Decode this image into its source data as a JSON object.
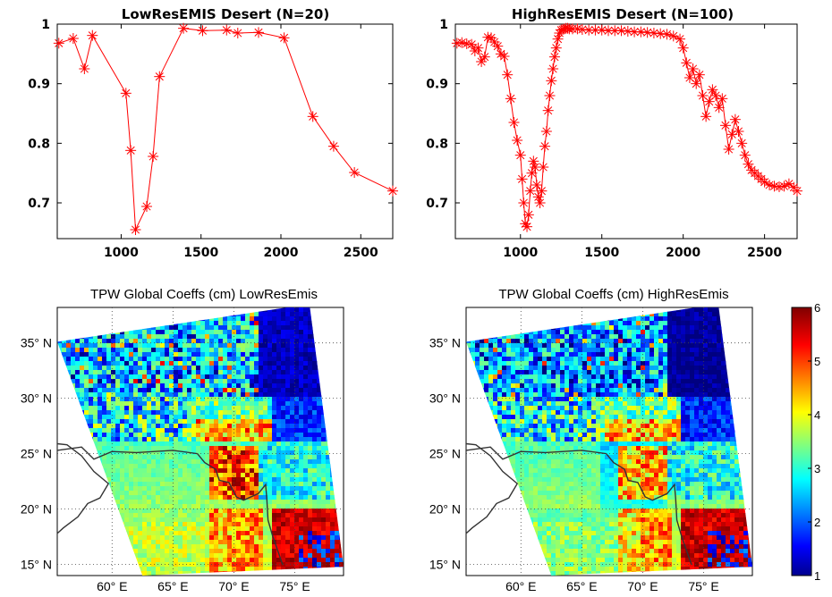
{
  "chart_data": [
    {
      "type": "line",
      "title": "LowResEMIS Desert (N=20)",
      "xlim": [
        600,
        2700
      ],
      "ylim": [
        0.64,
        1.0
      ],
      "x_ticks": [
        "1000",
        "1500",
        "2000",
        "2500"
      ],
      "y_ticks": [
        "0.7",
        "0.8",
        "0.9",
        "1"
      ],
      "marker": "asterisk",
      "color": "#ff0000",
      "x": [
        610,
        700,
        770,
        820,
        1030,
        1060,
        1090,
        1160,
        1200,
        1240,
        1390,
        1510,
        1660,
        1730,
        1860,
        2020,
        2200,
        2330,
        2460,
        2700
      ],
      "y": [
        0.968,
        0.976,
        0.925,
        0.981,
        0.884,
        0.788,
        0.655,
        0.694,
        0.778,
        0.912,
        0.993,
        0.989,
        0.99,
        0.985,
        0.986,
        0.977,
        0.845,
        0.795,
        0.751,
        0.72
      ]
    },
    {
      "type": "line",
      "title": "HighResEMIS Desert (N=100)",
      "xlim": [
        600,
        2700
      ],
      "ylim": [
        0.64,
        1.0
      ],
      "x_ticks": [
        "1000",
        "1500",
        "2000",
        "2500"
      ],
      "y_ticks": [
        "0.7",
        "0.8",
        "0.9",
        "1"
      ],
      "marker": "asterisk",
      "color": "#ff0000",
      "x": [
        610,
        640,
        670,
        700,
        720,
        740,
        760,
        780,
        800,
        820,
        840,
        860,
        880,
        900,
        920,
        940,
        960,
        980,
        1000,
        1010,
        1020,
        1030,
        1040,
        1050,
        1060,
        1070,
        1080,
        1090,
        1100,
        1110,
        1120,
        1130,
        1140,
        1150,
        1160,
        1170,
        1180,
        1190,
        1200,
        1210,
        1220,
        1230,
        1240,
        1250,
        1260,
        1270,
        1280,
        1290,
        1300,
        1320,
        1350,
        1380,
        1420,
        1460,
        1500,
        1540,
        1580,
        1620,
        1660,
        1700,
        1740,
        1780,
        1820,
        1860,
        1900,
        1940,
        1980,
        2000,
        2020,
        2040,
        2060,
        2080,
        2100,
        2120,
        2140,
        2160,
        2180,
        2200,
        2220,
        2240,
        2260,
        2280,
        2300,
        2320,
        2340,
        2360,
        2380,
        2400,
        2420,
        2440,
        2460,
        2480,
        2500,
        2530,
        2560,
        2590,
        2620,
        2650,
        2680,
        2700
      ],
      "y": [
        0.968,
        0.969,
        0.967,
        0.966,
        0.955,
        0.96,
        0.937,
        0.945,
        0.978,
        0.977,
        0.97,
        0.963,
        0.95,
        0.946,
        0.915,
        0.875,
        0.835,
        0.805,
        0.78,
        0.74,
        0.7,
        0.665,
        0.66,
        0.68,
        0.72,
        0.75,
        0.77,
        0.76,
        0.73,
        0.71,
        0.7,
        0.72,
        0.76,
        0.795,
        0.82,
        0.855,
        0.88,
        0.905,
        0.925,
        0.945,
        0.96,
        0.975,
        0.985,
        0.99,
        0.991,
        0.992,
        0.993,
        0.993,
        0.992,
        0.992,
        0.992,
        0.991,
        0.99,
        0.99,
        0.99,
        0.989,
        0.989,
        0.989,
        0.988,
        0.987,
        0.987,
        0.986,
        0.985,
        0.984,
        0.983,
        0.98,
        0.975,
        0.96,
        0.935,
        0.91,
        0.925,
        0.9,
        0.915,
        0.88,
        0.845,
        0.87,
        0.89,
        0.88,
        0.86,
        0.875,
        0.83,
        0.79,
        0.815,
        0.84,
        0.82,
        0.8,
        0.78,
        0.765,
        0.755,
        0.75,
        0.745,
        0.74,
        0.735,
        0.73,
        0.728,
        0.727,
        0.728,
        0.732,
        0.726,
        0.72
      ]
    },
    {
      "type": "heatmap",
      "title": "TPW Global Coeffs (cm) LowResEmis",
      "x_ticks": [
        "60° E",
        "65° E",
        "70° E",
        "75° E"
      ],
      "y_ticks": [
        "35° N",
        "30° N",
        "25° N",
        "20° N",
        "15° N"
      ],
      "xlim": [
        55.5,
        79.0
      ],
      "ylim": [
        14.0,
        38.2
      ],
      "variable": "TPW (cm)",
      "pattern": "low"
    },
    {
      "type": "heatmap",
      "title": "TPW Global Coeffs (cm) HighResEmis",
      "x_ticks": [
        "60° E",
        "65° E",
        "70° E",
        "75° E"
      ],
      "y_ticks": [
        "35° N",
        "30° N",
        "25° N",
        "20° N",
        "15° N"
      ],
      "xlim": [
        55.5,
        79.0
      ],
      "ylim": [
        14.0,
        38.2
      ],
      "variable": "TPW (cm)",
      "pattern": "high"
    }
  ],
  "colorbar": {
    "range": [
      1,
      6
    ],
    "ticks": [
      "1",
      "2",
      "3",
      "4",
      "5",
      "6"
    ],
    "colormap": "jet"
  }
}
